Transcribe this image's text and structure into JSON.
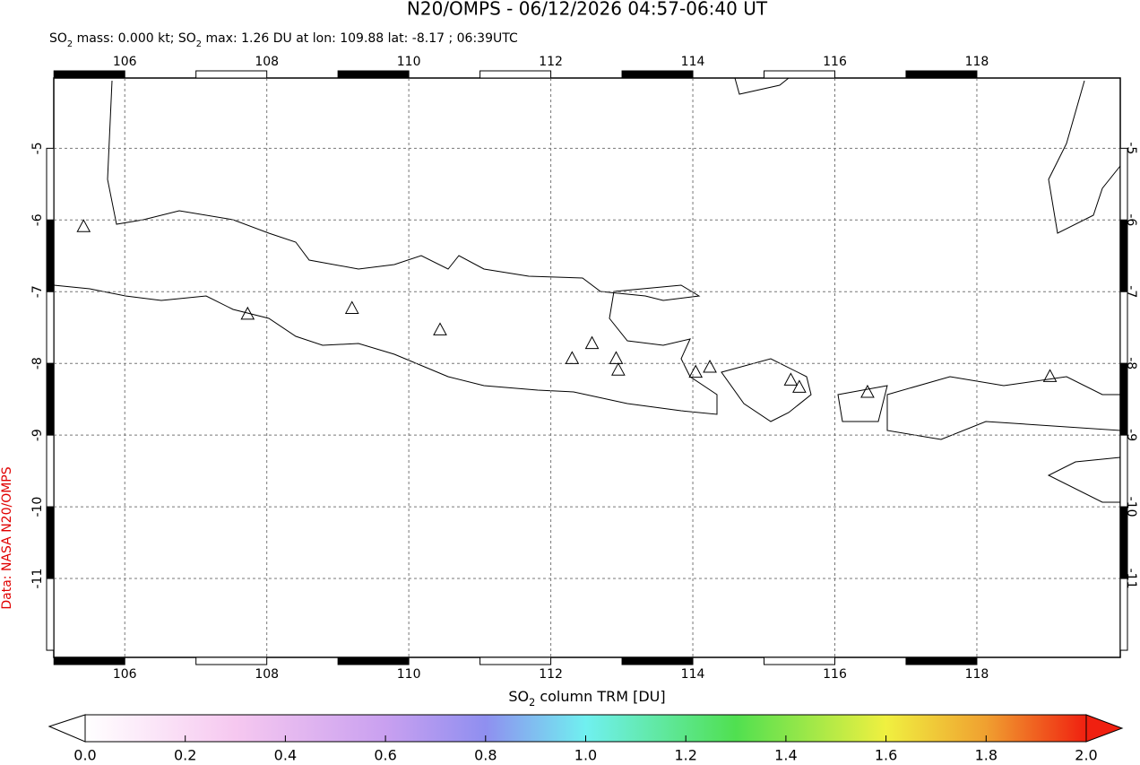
{
  "chart_data": {
    "type": "map",
    "title": "N20/OMPS - 06/12/2026 04:57-06:40 UT",
    "subtitle": [
      "SO",
      "2",
      " mass: 0.000 kt; SO",
      "2",
      " max: 1.26 DU at lon: 109.88 lat: -8.17 ; 06:39UTC"
    ],
    "xlim": [
      105,
      120.02
    ],
    "ylim": [
      -12.1,
      -4.02
    ],
    "xticks": [
      106,
      108,
      110,
      112,
      114,
      116,
      118
    ],
    "yticks": [
      -5,
      -6,
      -7,
      -8,
      -9,
      -10,
      -11
    ],
    "grid": true,
    "volcanoes": {
      "lon": [
        105.42,
        107.73,
        109.2,
        110.44,
        112.3,
        112.58,
        112.92,
        112.95,
        114.04,
        114.24,
        115.38,
        115.5,
        116.46,
        119.03
      ],
      "lat": [
        -6.1,
        -7.32,
        -7.24,
        -7.54,
        -7.94,
        -7.73,
        -7.94,
        -8.1,
        -8.13,
        -8.06,
        -8.24,
        -8.34,
        -8.41,
        -8.19
      ]
    },
    "colorbar": {
      "label": [
        "SO",
        "2",
        " column TRM [DU]"
      ],
      "lim": [
        0,
        2
      ],
      "ticks": [
        {
          "value": 0,
          "label": "0.0"
        },
        0.2,
        0.4,
        0.6,
        0.8,
        {
          "value": 1,
          "label": "1.0"
        },
        1.2,
        1.4,
        1.6,
        1.8,
        {
          "value": 2,
          "label": "2.0"
        }
      ]
    },
    "credit": "Data: NASA N20/OMPS"
  }
}
